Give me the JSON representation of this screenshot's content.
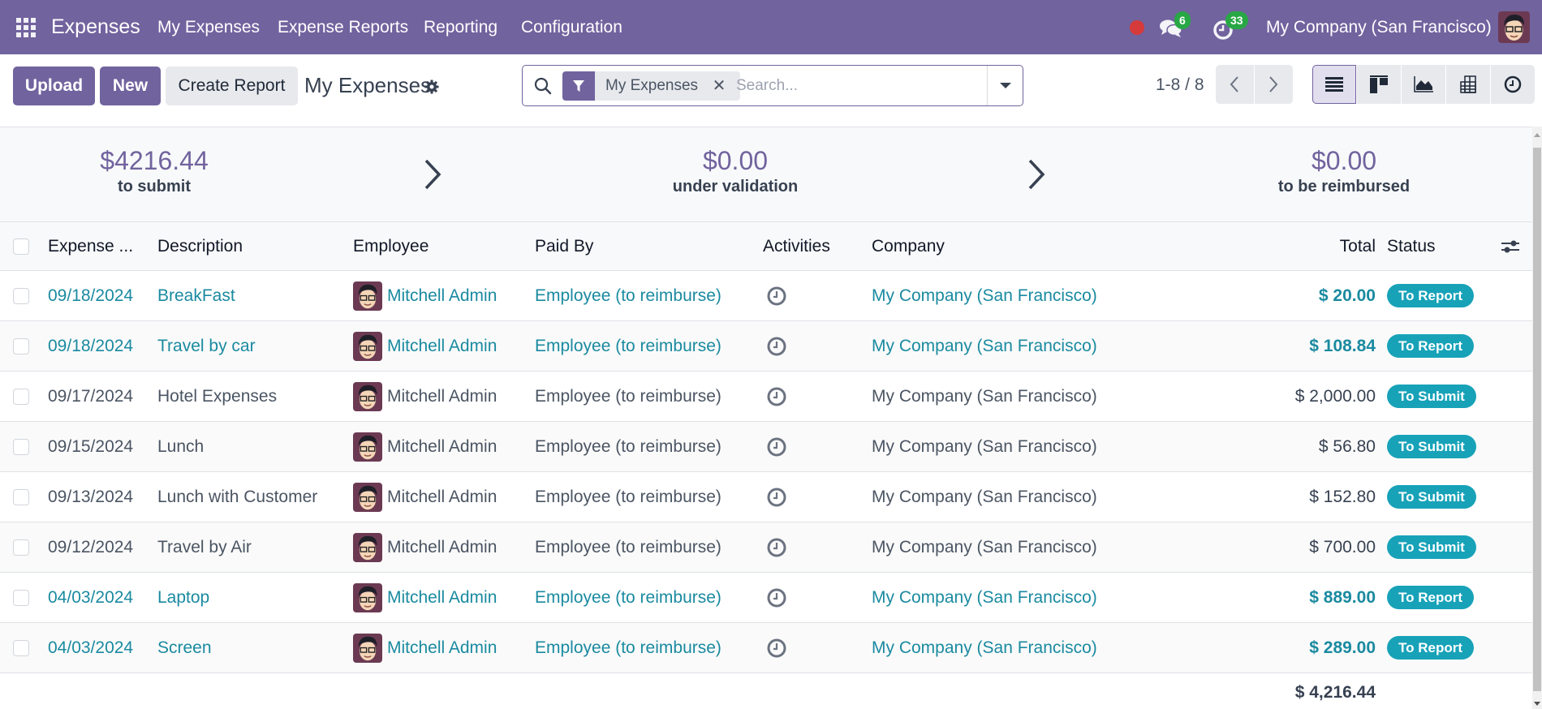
{
  "navbar": {
    "app_name": "Expenses",
    "menu": [
      "My Expenses",
      "Expense Reports",
      "Reporting",
      "Configuration"
    ],
    "messages_badge": "6",
    "activities_badge": "33",
    "company": "My Company (San Francisco)",
    "colors": {
      "navbar_bg": "#71639e",
      "badge_bg": "#28a745",
      "recording_dot": "#d63a3a"
    }
  },
  "control_panel": {
    "upload_label": "Upload",
    "new_label": "New",
    "create_report_label": "Create Report",
    "title": "My Expenses",
    "search": {
      "facet_label": "My Expenses",
      "facet_icon": "filter-icon",
      "placeholder": "Search...",
      "value": ""
    },
    "pager": "1-8 / 8",
    "views": [
      "list",
      "kanban",
      "graph",
      "pivot",
      "activity"
    ],
    "active_view": "list"
  },
  "summary": {
    "items": [
      {
        "amount": "$4216.44",
        "label": "to submit"
      },
      {
        "amount": "$0.00",
        "label": "under validation"
      },
      {
        "amount": "$0.00",
        "label": "to be reimbursed"
      }
    ]
  },
  "table": {
    "columns": [
      "Expense ...",
      "Description",
      "Employee",
      "Paid By",
      "Activities",
      "Company",
      "Total",
      "Status"
    ],
    "rows": [
      {
        "date": "09/18/2024",
        "description": "BreakFast",
        "employee": "Mitchell Admin",
        "paid_by": "Employee (to reimburse)",
        "company": "My Company (San Francisco)",
        "total": "$ 20.00",
        "status": "To Report",
        "linked": true
      },
      {
        "date": "09/18/2024",
        "description": "Travel by car",
        "employee": "Mitchell Admin",
        "paid_by": "Employee (to reimburse)",
        "company": "My Company (San Francisco)",
        "total": "$ 108.84",
        "status": "To Report",
        "linked": true
      },
      {
        "date": "09/17/2024",
        "description": "Hotel Expenses",
        "employee": "Mitchell Admin",
        "paid_by": "Employee (to reimburse)",
        "company": "My Company (San Francisco)",
        "total": "$ 2,000.00",
        "status": "To Submit",
        "linked": false
      },
      {
        "date": "09/15/2024",
        "description": "Lunch",
        "employee": "Mitchell Admin",
        "paid_by": "Employee (to reimburse)",
        "company": "My Company (San Francisco)",
        "total": "$ 56.80",
        "status": "To Submit",
        "linked": false
      },
      {
        "date": "09/13/2024",
        "description": "Lunch with Customer",
        "employee": "Mitchell Admin",
        "paid_by": "Employee (to reimburse)",
        "company": "My Company (San Francisco)",
        "total": "$ 152.80",
        "status": "To Submit",
        "linked": false
      },
      {
        "date": "09/12/2024",
        "description": "Travel by Air",
        "employee": "Mitchell Admin",
        "paid_by": "Employee (to reimburse)",
        "company": "My Company (San Francisco)",
        "total": "$ 700.00",
        "status": "To Submit",
        "linked": false
      },
      {
        "date": "04/03/2024",
        "description": "Laptop",
        "employee": "Mitchell Admin",
        "paid_by": "Employee (to reimburse)",
        "company": "My Company (San Francisco)",
        "total": "$ 889.00",
        "status": "To Report",
        "linked": true
      },
      {
        "date": "04/03/2024",
        "description": "Screen",
        "employee": "Mitchell Admin",
        "paid_by": "Employee (to reimburse)",
        "company": "My Company (San Francisco)",
        "total": "$ 289.00",
        "status": "To Report",
        "linked": true
      }
    ],
    "footer_total": "$ 4,216.44",
    "colors": {
      "link": "#1a8aa0",
      "status_badge": "#17a2b8",
      "summary_amount": "#71639e"
    }
  }
}
